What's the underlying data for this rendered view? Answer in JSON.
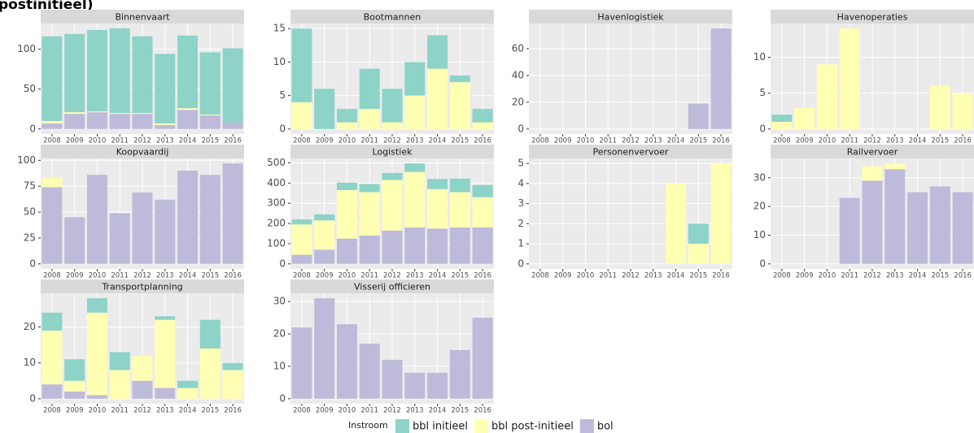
{
  "page_title": "postinitieel)",
  "legend": {
    "title": "Instroom"
  },
  "chart_data": [
    {
      "type": "bar",
      "stacked": true,
      "title": "Binnenvaart",
      "grid": true,
      "categories": [
        "2008",
        "2009",
        "2010",
        "2011",
        "2012",
        "2013",
        "2014",
        "2015",
        "2016"
      ],
      "series": [
        {
          "name": "bbl initieel",
          "color": "#8dd3c7",
          "values": [
            106,
            98,
            102,
            106,
            96,
            87,
            91,
            78,
            93
          ]
        },
        {
          "name": "bbl post-initieel",
          "color": "#ffffb3",
          "values": [
            3,
            2,
            1,
            1,
            1,
            2,
            2,
            1,
            0
          ]
        },
        {
          "name": "bol",
          "color": "#bebada",
          "values": [
            7,
            19,
            21,
            19,
            19,
            5,
            24,
            17,
            8
          ]
        }
      ],
      "ylim": [
        -6.3,
        132
      ],
      "yticks": [
        0,
        50,
        100
      ]
    },
    {
      "type": "bar",
      "stacked": true,
      "title": "Bootmannen",
      "grid": true,
      "categories": [
        "2008",
        "2009",
        "2010",
        "2011",
        "2012",
        "2013",
        "2014",
        "2015",
        "2016"
      ],
      "series": [
        {
          "name": "bbl initieel",
          "color": "#8dd3c7",
          "values": [
            11,
            6,
            2,
            6,
            5,
            5,
            5,
            1,
            2
          ]
        },
        {
          "name": "bbl post-initieel",
          "color": "#ffffb3",
          "values": [
            4,
            0,
            1,
            3,
            1,
            5,
            9,
            7,
            1
          ]
        },
        {
          "name": "bol",
          "color": "#bebada",
          "values": [
            0,
            0,
            0,
            0,
            0,
            0,
            0,
            0,
            0
          ]
        }
      ],
      "ylim": [
        -0.75,
        15.75
      ],
      "yticks": [
        0,
        5,
        10,
        15
      ]
    },
    {
      "type": "bar",
      "stacked": true,
      "title": "Havenlogistiek",
      "grid": true,
      "categories": [
        "2008",
        "2009",
        "2010",
        "2011",
        "2012",
        "2013",
        "2014",
        "2015",
        "2016"
      ],
      "series": [
        {
          "name": "bbl initieel",
          "color": "#8dd3c7",
          "values": [
            0,
            0,
            0,
            0,
            0,
            0,
            0,
            0,
            0
          ]
        },
        {
          "name": "bbl post-initieel",
          "color": "#ffffb3",
          "values": [
            0,
            0,
            0,
            0,
            0,
            0,
            0,
            0,
            0
          ]
        },
        {
          "name": "bol",
          "color": "#bebada",
          "values": [
            0,
            0,
            0,
            0,
            0,
            0,
            0,
            19,
            75
          ]
        }
      ],
      "ylim": [
        -3.75,
        78.75
      ],
      "yticks": [
        0,
        20,
        40,
        60
      ]
    },
    {
      "type": "bar",
      "stacked": true,
      "title": "Havenoperaties",
      "grid": true,
      "categories": [
        "2008",
        "2009",
        "2010",
        "2011",
        "2012",
        "2013",
        "2014",
        "2015",
        "2016"
      ],
      "series": [
        {
          "name": "bbl initieel",
          "color": "#8dd3c7",
          "values": [
            1,
            0,
            0,
            0,
            0,
            0,
            0,
            0,
            0
          ]
        },
        {
          "name": "bbl post-initieel",
          "color": "#ffffb3",
          "values": [
            1,
            3,
            9,
            14,
            0,
            0,
            0,
            6,
            5
          ]
        },
        {
          "name": "bol",
          "color": "#bebada",
          "values": [
            0,
            0,
            0,
            0,
            0,
            0,
            0,
            0,
            0
          ]
        }
      ],
      "ylim": [
        -0.7,
        14.7
      ],
      "yticks": [
        0,
        5,
        10
      ]
    },
    {
      "type": "bar",
      "stacked": true,
      "title": "Koopvaardij",
      "grid": true,
      "categories": [
        "2008",
        "2009",
        "2010",
        "2011",
        "2012",
        "2013",
        "2014",
        "2015",
        "2016"
      ],
      "series": [
        {
          "name": "bbl initieel",
          "color": "#8dd3c7",
          "values": [
            0,
            0,
            0,
            0,
            0,
            0,
            0,
            0,
            0
          ]
        },
        {
          "name": "bbl post-initieel",
          "color": "#ffffb3",
          "values": [
            9,
            0,
            0,
            0,
            0,
            0,
            0,
            0,
            0
          ]
        },
        {
          "name": "bol",
          "color": "#bebada",
          "values": [
            74,
            45,
            86,
            49,
            69,
            62,
            90,
            86,
            97
          ]
        }
      ],
      "ylim": [
        -4.85,
        101.85
      ],
      "yticks": [
        0,
        25,
        50,
        75,
        100
      ]
    },
    {
      "type": "bar",
      "stacked": true,
      "title": "Logistiek",
      "grid": true,
      "categories": [
        "2008",
        "2009",
        "2010",
        "2011",
        "2012",
        "2013",
        "2014",
        "2015",
        "2016"
      ],
      "series": [
        {
          "name": "bbl initieel",
          "color": "#8dd3c7",
          "values": [
            25,
            30,
            37,
            40,
            35,
            42,
            50,
            67,
            60
          ]
        },
        {
          "name": "bbl post-initieel",
          "color": "#ffffb3",
          "values": [
            150,
            145,
            240,
            215,
            250,
            275,
            195,
            175,
            150
          ]
        },
        {
          "name": "bol",
          "color": "#bebada",
          "values": [
            45,
            70,
            125,
            140,
            165,
            180,
            175,
            180,
            180
          ]
        }
      ],
      "ylim": [
        -25,
        522
      ],
      "yticks": [
        0,
        100,
        200,
        300,
        400,
        500
      ]
    },
    {
      "type": "bar",
      "stacked": true,
      "title": "Personenvervoer",
      "grid": true,
      "categories": [
        "2008",
        "2009",
        "2010",
        "2011",
        "2012",
        "2013",
        "2014",
        "2015",
        "2016"
      ],
      "series": [
        {
          "name": "bbl initieel",
          "color": "#8dd3c7",
          "values": [
            0,
            0,
            0,
            0,
            0,
            0,
            0,
            1,
            0
          ]
        },
        {
          "name": "bbl post-initieel",
          "color": "#ffffb3",
          "values": [
            0,
            0,
            0,
            0,
            0,
            0,
            4,
            1,
            5
          ]
        },
        {
          "name": "bol",
          "color": "#bebada",
          "values": [
            0,
            0,
            0,
            0,
            0,
            0,
            0,
            0,
            0
          ]
        }
      ],
      "ylim": [
        -0.25,
        5.25
      ],
      "yticks": [
        0,
        1,
        2,
        3,
        4,
        5
      ]
    },
    {
      "type": "bar",
      "stacked": true,
      "title": "Railvervoer",
      "grid": true,
      "categories": [
        "2008",
        "2009",
        "2010",
        "2011",
        "2012",
        "2013",
        "2014",
        "2015",
        "2016"
      ],
      "series": [
        {
          "name": "bbl initieel",
          "color": "#8dd3c7",
          "values": [
            0,
            0,
            0,
            0,
            0,
            0,
            0,
            0,
            0
          ]
        },
        {
          "name": "bbl post-initieel",
          "color": "#ffffb3",
          "values": [
            0,
            0,
            0,
            0,
            5,
            2,
            0,
            0,
            0
          ]
        },
        {
          "name": "bol",
          "color": "#bebada",
          "values": [
            0,
            0,
            0,
            23,
            29,
            33,
            25,
            27,
            25
          ]
        }
      ],
      "ylim": [
        -1.75,
        36.75
      ],
      "yticks": [
        0,
        10,
        20,
        30
      ]
    },
    {
      "type": "bar",
      "stacked": true,
      "title": "Transportplanning",
      "grid": true,
      "categories": [
        "2008",
        "2009",
        "2010",
        "2011",
        "2012",
        "2013",
        "2014",
        "2015",
        "2016"
      ],
      "series": [
        {
          "name": "bbl initieel",
          "color": "#8dd3c7",
          "values": [
            5,
            6,
            4,
            5,
            0,
            1,
            2,
            8,
            2
          ]
        },
        {
          "name": "bbl post-initieel",
          "color": "#ffffb3",
          "values": [
            15,
            3,
            23,
            8,
            7,
            19,
            3,
            14,
            8
          ]
        },
        {
          "name": "bol",
          "color": "#bebada",
          "values": [
            4,
            2,
            1,
            0,
            5,
            3,
            0,
            0,
            0
          ]
        }
      ],
      "ylim": [
        -1.4,
        29.4
      ],
      "yticks": [
        0,
        10,
        20
      ]
    },
    {
      "type": "bar",
      "stacked": true,
      "title": "Visserij officieren",
      "grid": true,
      "categories": [
        "2008",
        "2009",
        "2010",
        "2011",
        "2012",
        "2013",
        "2014",
        "2015",
        "2016"
      ],
      "series": [
        {
          "name": "bbl initieel",
          "color": "#8dd3c7",
          "values": [
            0,
            0,
            0,
            0,
            0,
            0,
            0,
            0,
            0
          ]
        },
        {
          "name": "bbl post-initieel",
          "color": "#ffffb3",
          "values": [
            0,
            0,
            0,
            0,
            0,
            0,
            0,
            0,
            0
          ]
        },
        {
          "name": "bol",
          "color": "#bebada",
          "values": [
            22,
            31,
            23,
            17,
            12,
            8,
            8,
            15,
            25
          ]
        }
      ],
      "ylim": [
        -1.55,
        32.55
      ],
      "yticks": [
        0,
        10,
        20,
        30
      ]
    }
  ]
}
